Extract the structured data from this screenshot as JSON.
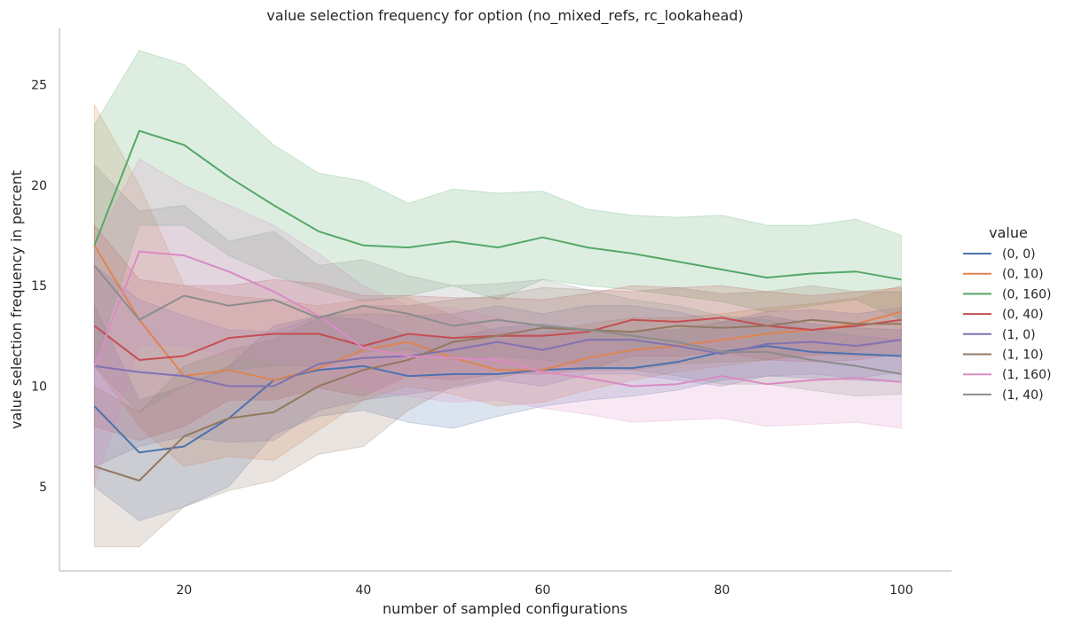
{
  "chart_data": {
    "type": "line",
    "title": "value selection frequency for option (no_mixed_refs, rc_lookahead)",
    "xlabel": "number of sampled configurations",
    "ylabel": "value selection frequency in percent",
    "xlim": [
      6.1,
      105.6
    ],
    "ylim": [
      0.8,
      27.8
    ],
    "x_ticks": [
      20,
      40,
      60,
      80,
      100
    ],
    "y_ticks": [
      5,
      10,
      15,
      20,
      25
    ],
    "grid": false,
    "legend_title": "value",
    "legend_position": "right",
    "x": [
      10,
      15,
      20,
      25,
      30,
      35,
      40,
      45,
      50,
      55,
      60,
      65,
      70,
      75,
      80,
      85,
      90,
      95,
      100
    ],
    "series": [
      {
        "name": "(0, 0)",
        "color": "#4c72b0",
        "values": [
          9.0,
          6.7,
          7.0,
          8.4,
          10.3,
          10.8,
          11.0,
          10.5,
          10.6,
          10.6,
          10.8,
          10.9,
          10.9,
          11.2,
          11.7,
          12.0,
          11.7,
          11.6,
          11.5
        ],
        "lower": [
          5.0,
          3.3,
          4.0,
          5.0,
          7.6,
          8.5,
          8.8,
          8.2,
          7.9,
          8.5,
          9.0,
          9.3,
          9.5,
          9.8,
          10.3,
          10.5,
          10.4,
          10.3,
          10.2
        ],
        "upper": [
          14.0,
          9.3,
          10.0,
          11.0,
          13.0,
          13.5,
          13.3,
          12.5,
          12.4,
          12.9,
          13.1,
          12.8,
          12.7,
          12.8,
          13.2,
          13.5,
          13.1,
          12.9,
          12.8
        ]
      },
      {
        "name": "(0, 10)",
        "color": "#dd8452",
        "values": [
          17.0,
          13.3,
          10.5,
          10.8,
          10.3,
          10.9,
          11.8,
          12.2,
          11.4,
          10.8,
          10.8,
          11.4,
          11.8,
          12.0,
          12.3,
          12.6,
          12.8,
          13.1,
          13.7
        ],
        "lower": [
          11.0,
          8.0,
          6.0,
          6.5,
          6.3,
          7.8,
          9.3,
          10.0,
          9.6,
          9.0,
          9.2,
          9.8,
          10.3,
          10.7,
          11.0,
          11.3,
          11.5,
          11.8,
          12.4
        ],
        "upper": [
          24.0,
          20.0,
          15.0,
          14.5,
          14.3,
          14.0,
          14.3,
          14.4,
          13.5,
          12.7,
          12.6,
          13.1,
          13.4,
          13.4,
          13.6,
          13.9,
          14.1,
          14.4,
          15.0
        ]
      },
      {
        "name": "(0, 160)",
        "color": "#55a868",
        "values": [
          17.0,
          22.7,
          22.0,
          20.4,
          19.0,
          17.7,
          17.0,
          16.9,
          17.2,
          16.9,
          17.4,
          16.9,
          16.6,
          16.2,
          15.8,
          15.4,
          15.6,
          15.7,
          15.3
        ],
        "lower": [
          11.0,
          18.0,
          18.0,
          16.5,
          15.5,
          14.8,
          14.2,
          14.5,
          15.0,
          14.3,
          15.3,
          15.0,
          14.8,
          14.5,
          14.2,
          13.7,
          14.0,
          14.3,
          13.3
        ],
        "upper": [
          23.0,
          26.7,
          26.0,
          24.0,
          22.0,
          20.6,
          20.2,
          19.1,
          19.8,
          19.6,
          19.7,
          18.8,
          18.5,
          18.4,
          18.5,
          18.0,
          18.0,
          18.3,
          17.5
        ]
      },
      {
        "name": "(0, 40)",
        "color": "#c44e52",
        "values": [
          13.0,
          11.3,
          11.5,
          12.4,
          12.6,
          12.6,
          12.0,
          12.6,
          12.4,
          12.5,
          12.5,
          12.7,
          13.3,
          13.2,
          13.4,
          13.0,
          12.8,
          13.0,
          13.3
        ],
        "lower": [
          8.0,
          7.3,
          8.0,
          9.3,
          9.3,
          9.9,
          9.5,
          10.5,
          10.3,
          10.6,
          10.6,
          10.8,
          11.5,
          11.5,
          11.7,
          11.3,
          11.2,
          11.3,
          11.6
        ],
        "upper": [
          18.0,
          15.3,
          15.0,
          15.0,
          15.3,
          15.1,
          14.5,
          14.5,
          14.4,
          14.4,
          14.3,
          14.6,
          15.0,
          14.9,
          15.0,
          14.7,
          14.5,
          14.7,
          14.9
        ]
      },
      {
        "name": "(1, 0)",
        "color": "#8172b3",
        "values": [
          11.0,
          10.7,
          10.5,
          10.0,
          10.0,
          11.1,
          11.4,
          11.5,
          11.8,
          12.2,
          11.8,
          12.3,
          12.3,
          12.0,
          11.6,
          12.1,
          12.2,
          12.0,
          12.3
        ],
        "lower": [
          6.0,
          7.0,
          7.5,
          7.2,
          7.3,
          8.8,
          9.3,
          9.6,
          9.9,
          10.3,
          10.0,
          10.6,
          10.6,
          10.3,
          10.0,
          10.5,
          10.6,
          10.4,
          10.7
        ],
        "upper": [
          16.0,
          14.3,
          13.5,
          12.8,
          12.7,
          13.5,
          13.6,
          13.5,
          13.6,
          14.0,
          13.6,
          14.0,
          14.0,
          13.7,
          13.2,
          13.7,
          13.8,
          13.6,
          13.9
        ]
      },
      {
        "name": "(1, 10)",
        "color": "#937860",
        "values": [
          6.0,
          5.3,
          7.5,
          8.4,
          8.7,
          10.0,
          10.8,
          11.3,
          12.2,
          12.5,
          12.9,
          12.8,
          12.7,
          13.0,
          12.9,
          13.0,
          13.3,
          13.1,
          13.1
        ],
        "lower": [
          2.0,
          2.0,
          4.0,
          4.8,
          5.3,
          6.6,
          7.0,
          8.8,
          10.0,
          10.4,
          10.9,
          10.8,
          10.8,
          11.1,
          11.2,
          11.3,
          11.6,
          11.5,
          11.5
        ],
        "upper": [
          10.0,
          8.7,
          11.0,
          11.8,
          12.3,
          13.4,
          14.0,
          14.0,
          14.3,
          14.5,
          14.9,
          14.8,
          14.7,
          14.9,
          14.6,
          14.7,
          15.0,
          14.7,
          14.7
        ]
      },
      {
        "name": "(1, 160)",
        "color": "#da8bc3",
        "values": [
          11.0,
          16.7,
          16.5,
          15.7,
          14.7,
          13.5,
          11.9,
          11.5,
          11.4,
          11.3,
          10.7,
          10.4,
          10.0,
          10.1,
          10.5,
          10.1,
          10.3,
          10.4,
          10.2
        ],
        "lower": [
          5.0,
          12.0,
          12.0,
          11.5,
          11.3,
          10.8,
          9.8,
          9.5,
          9.2,
          9.3,
          8.9,
          8.6,
          8.2,
          8.3,
          8.4,
          8.0,
          8.1,
          8.2,
          7.9
        ],
        "upper": [
          17.0,
          21.3,
          20.0,
          19.0,
          18.0,
          16.6,
          15.0,
          14.0,
          13.9,
          13.4,
          12.7,
          12.4,
          11.9,
          11.9,
          12.5,
          12.1,
          12.4,
          12.5,
          12.4
        ]
      },
      {
        "name": "(1, 40)",
        "color": "#8c8c8c",
        "values": [
          16.0,
          13.3,
          14.5,
          14.0,
          14.3,
          13.4,
          14.0,
          13.6,
          13.0,
          13.3,
          13.0,
          12.8,
          12.5,
          12.2,
          11.7,
          11.7,
          11.3,
          11.0,
          10.6
        ],
        "lower": [
          11.0,
          8.7,
          10.0,
          10.8,
          11.0,
          11.0,
          11.7,
          11.8,
          11.3,
          11.5,
          11.3,
          11.0,
          10.8,
          10.5,
          10.1,
          10.1,
          9.8,
          9.5,
          9.6
        ],
        "upper": [
          21.0,
          18.7,
          19.0,
          17.2,
          17.7,
          16.0,
          16.3,
          15.5,
          15.0,
          15.1,
          15.3,
          14.8,
          14.3,
          14.0,
          13.5,
          13.3,
          12.8,
          12.5,
          12.3
        ]
      }
    ]
  }
}
